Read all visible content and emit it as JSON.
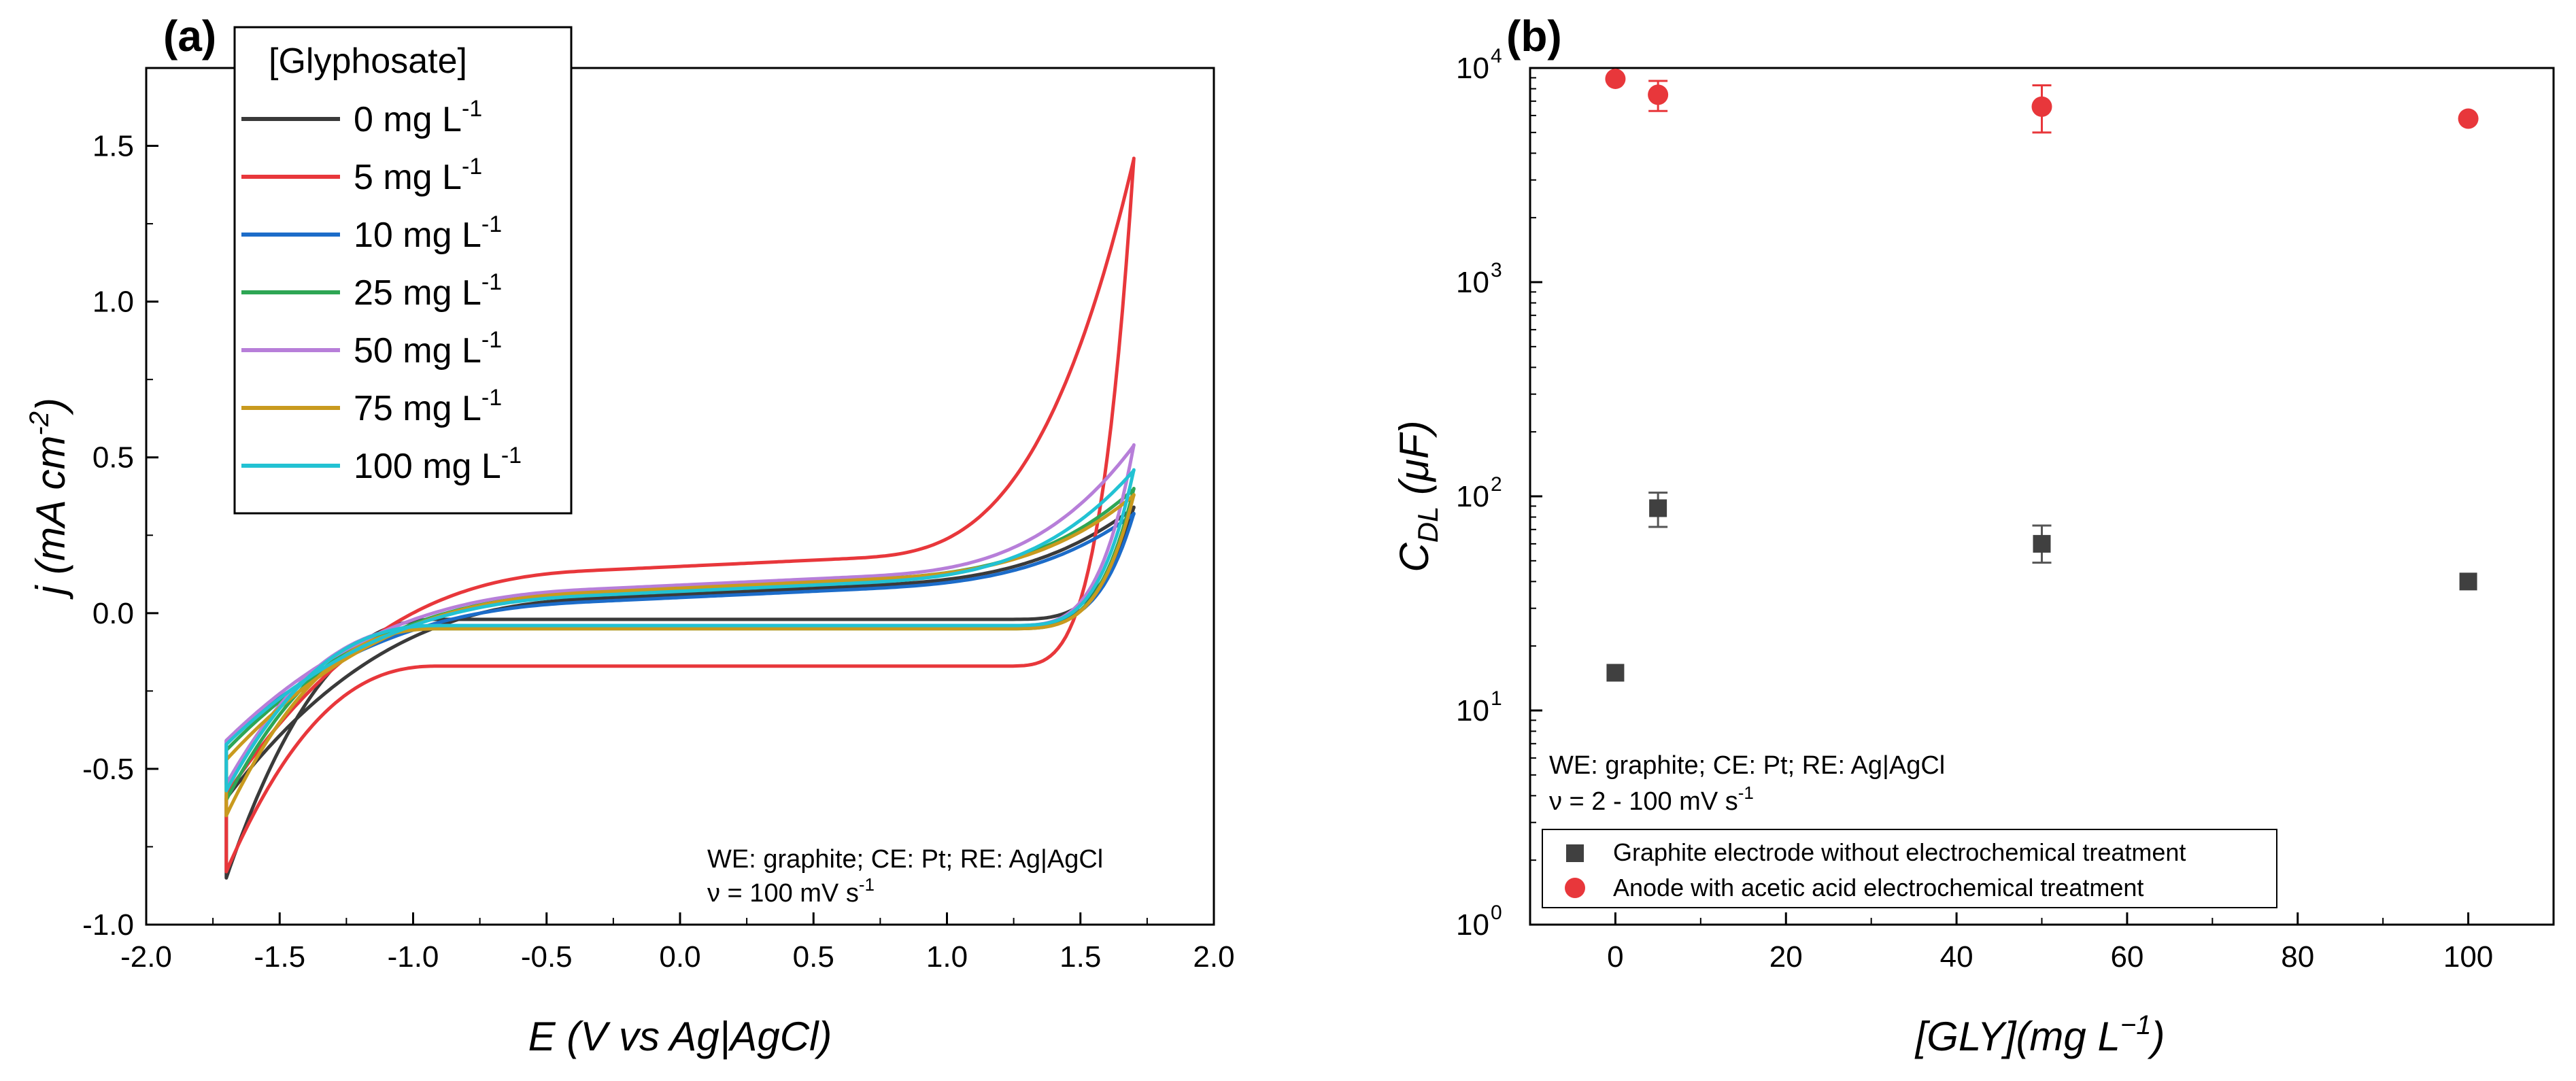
{
  "chart_data": [
    {
      "panel_label": "(a)",
      "type": "line",
      "xlabel": "E (V vs Ag|AgCl)",
      "ylabel_main": "j",
      "ylabel_unit": "(mA cm",
      "ylabel_exp": "-2",
      "ylabel_close": ")",
      "xlim": [
        -2.0,
        2.0
      ],
      "ylim": [
        -1.0,
        1.75
      ],
      "x_ticks": [
        "-2.0",
        "-1.5",
        "-1.0",
        "-0.5",
        "0.0",
        "0.5",
        "1.0",
        "1.5",
        "2.0"
      ],
      "y_ticks": [
        "-1.0",
        "-0.5",
        "0.0",
        "0.5",
        "1.0",
        "1.5"
      ],
      "legend_title": "[Glyphosate]",
      "annotation_line1": "WE: graphite; CE: Pt; RE: Ag|AgCl",
      "annotation_line2": "ν = 100 mV s",
      "annotation_exp": "-1",
      "series": [
        {
          "name": "0 mg L",
          "unit_exp": "-1",
          "color": "#3a3a3a",
          "jmax": 0.34,
          "jmin": -0.85,
          "anodic_plateau": 0.06,
          "cathodic_plateau": -0.02,
          "shift": 0.0
        },
        {
          "name": "5 mg L",
          "unit_exp": "-1",
          "color": "#e8373b",
          "jmax": 1.46,
          "jmin": -0.83,
          "anodic_plateau": 0.15,
          "cathodic_plateau": -0.17,
          "shift": 0.05
        },
        {
          "name": "10 mg L",
          "unit_exp": "-1",
          "color": "#1c6cc9",
          "jmax": 0.32,
          "jmin": -0.55,
          "anodic_plateau": 0.05,
          "cathodic_plateau": -0.04,
          "shift": -0.03
        },
        {
          "name": "25 mg L",
          "unit_exp": "-1",
          "color": "#2ea654",
          "jmax": 0.4,
          "jmin": -0.6,
          "anodic_plateau": 0.08,
          "cathodic_plateau": -0.05,
          "shift": 0.02
        },
        {
          "name": "50 mg L",
          "unit_exp": "-1",
          "color": "#b77ed9",
          "jmax": 0.54,
          "jmin": -0.55,
          "anodic_plateau": 0.09,
          "cathodic_plateau": -0.04,
          "shift": 0.03
        },
        {
          "name": "75 mg L",
          "unit_exp": "-1",
          "color": "#c99a1e",
          "jmax": 0.38,
          "jmin": -0.65,
          "anodic_plateau": 0.08,
          "cathodic_plateau": -0.05,
          "shift": 0.04
        },
        {
          "name": "100 mg L",
          "unit_exp": "-1",
          "color": "#22c2d3",
          "jmax": 0.46,
          "jmin": -0.57,
          "anodic_plateau": 0.07,
          "cathodic_plateau": -0.04,
          "shift": 0.01
        }
      ]
    },
    {
      "panel_label": "(b)",
      "type": "scatter",
      "xlabel_main": "[GLY](mg L",
      "xlabel_exp": "−1",
      "xlabel_close": ")",
      "ylabel_main": "C",
      "ylabel_sub": "DL",
      "ylabel_unit": " (μF)",
      "yscale": "log",
      "xlim": [
        -10,
        110
      ],
      "ylim": [
        1,
        10000
      ],
      "x_ticks": [
        "0",
        "20",
        "40",
        "60",
        "80",
        "100"
      ],
      "y_tick_base": "10",
      "y_tick_exps": [
        "0",
        "1",
        "2",
        "3",
        "4"
      ],
      "annotation_line1": "WE: graphite; CE: Pt; RE: Ag|AgCl",
      "annotation_line2": "ν = 2 - 100 mV s",
      "annotation_exp": "-1",
      "series": [
        {
          "name": "Graphite electrode without electrochemical treatment",
          "marker": "square",
          "color": "#404040",
          "x": [
            0,
            5,
            50,
            100
          ],
          "y": [
            15,
            88,
            60,
            40
          ],
          "err_low": [
            0,
            72,
            49,
            0
          ],
          "err_high": [
            0,
            104,
            73,
            0
          ]
        },
        {
          "name": "Anode with acetic acid electrochemical treatment",
          "marker": "circle",
          "color": "#e8373b",
          "x": [
            0,
            5,
            50,
            100
          ],
          "y": [
            8900,
            7500,
            6600,
            5800
          ],
          "err_low": [
            0,
            6300,
            5000,
            0
          ],
          "err_high": [
            0,
            8700,
            8300,
            0
          ]
        }
      ]
    }
  ]
}
